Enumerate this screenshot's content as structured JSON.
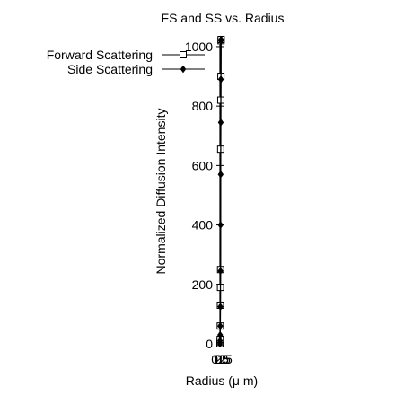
{
  "chart_data": {
    "type": "line",
    "title": "FS and SS vs. Radius",
    "xlabel": "Radius (μ m)",
    "ylabel": "Normalized Diffusion Intensity",
    "xlim": [
      0,
      0.5
    ],
    "ylim": [
      0,
      1024
    ],
    "x_ticks": [
      "0",
      "0.5",
      "1",
      "1.5",
      "2",
      "2.5"
    ],
    "y_ticks": [
      "0",
      "200",
      "400",
      "600",
      "800",
      "1000"
    ],
    "y_tick_values": [
      0,
      200,
      400,
      600,
      800,
      1000
    ],
    "legend_position": "top-left",
    "colors": {
      "line": "#000000",
      "axis": "#000000"
    },
    "series": [
      {
        "name": "Forward Scattering",
        "marker": "open-square",
        "x": [
          0,
          0.02,
          0.04,
          0.06,
          0.08,
          0.1,
          0.12,
          0.14,
          0.16,
          0.18,
          0.2,
          0.22
        ],
        "values": [
          0,
          5,
          15,
          60,
          130,
          190,
          250,
          655,
          820,
          900,
          1020,
          1024
        ]
      },
      {
        "name": "Side Scattering",
        "marker": "filled-diamond",
        "x": [
          0,
          0.02,
          0.04,
          0.06,
          0.08,
          0.1,
          0.12,
          0.14,
          0.16,
          0.18,
          0.2,
          0.22
        ],
        "values": [
          0,
          10,
          30,
          60,
          125,
          245,
          400,
          570,
          745,
          890,
          1020,
          1024
        ]
      }
    ]
  }
}
